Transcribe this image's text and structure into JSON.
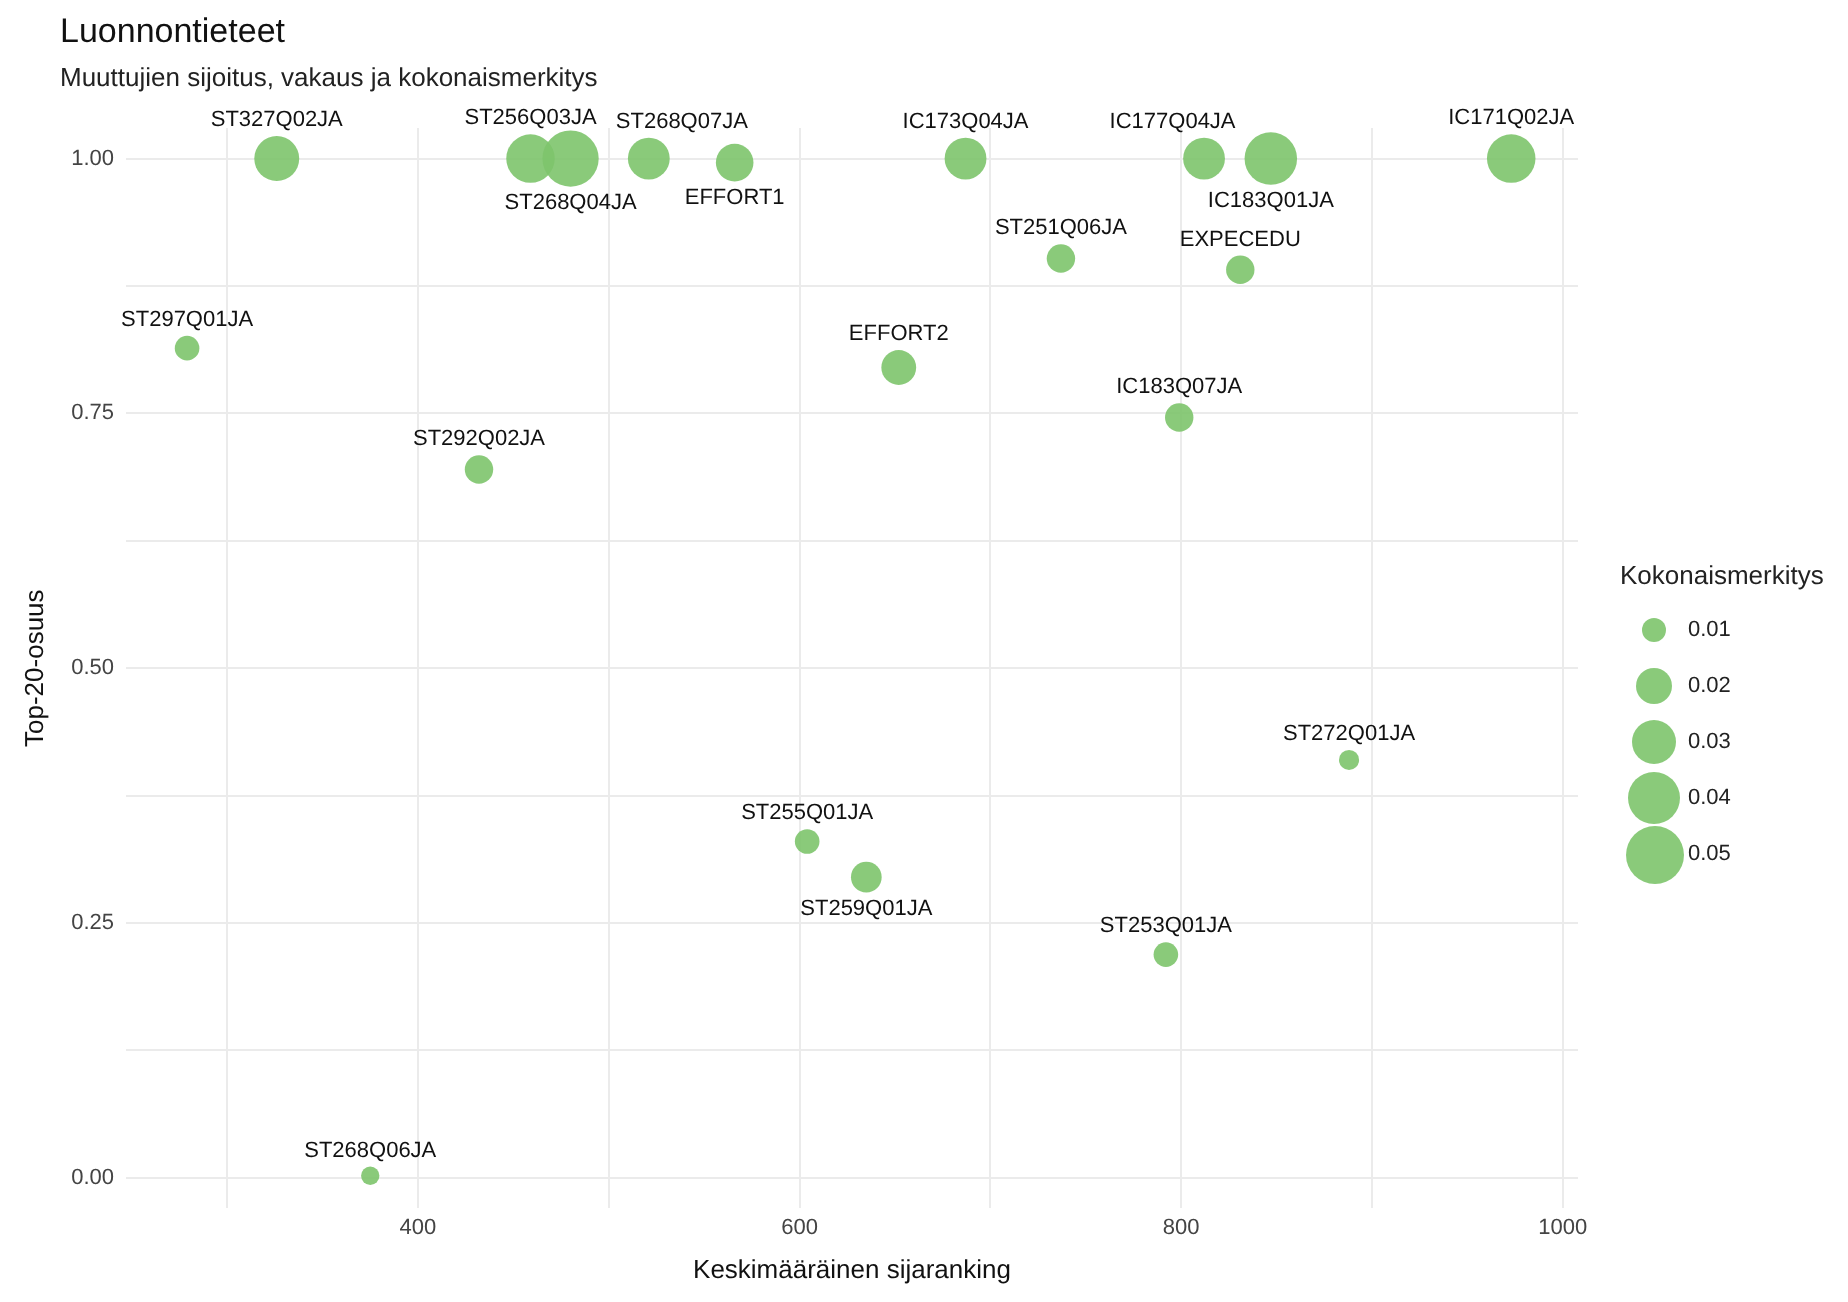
{
  "chart_data": {
    "type": "bubble",
    "title": "Luonnontieteet",
    "subtitle": "Muuttujien sijoitus, vakaus ja kokonaismerkitys",
    "xlabel": "Keskimääräinen sijaranking",
    "ylabel": "Top-20-osuus",
    "legend_title": "Kokonaismerkitys",
    "grid": true,
    "color": "#7dc46b",
    "x": [
      326,
      459,
      480,
      521,
      566,
      687,
      812,
      847,
      973,
      737,
      831,
      279,
      652,
      799,
      432,
      888,
      604,
      635,
      792,
      375
    ],
    "values": [
      1.0,
      1.0,
      1.0,
      1.0,
      0.996,
      1.0,
      1.0,
      1.0,
      1.0,
      0.902,
      0.891,
      0.814,
      0.795,
      0.746,
      0.695,
      0.41,
      0.33,
      0.295,
      0.219,
      0.002
    ],
    "sizes": [
      0.03,
      0.035,
      0.047,
      0.026,
      0.021,
      0.026,
      0.026,
      0.041,
      0.035,
      0.012,
      0.012,
      0.009,
      0.018,
      0.012,
      0.012,
      0.006,
      0.009,
      0.014,
      0.009,
      0.005
    ],
    "size_legend": [
      0.01,
      0.02,
      0.03,
      0.04,
      0.05
    ],
    "xlim": [
      247,
      1008
    ],
    "ylim": [
      -0.03,
      1.03
    ],
    "xticks": [
      {
        "value": 300,
        "label": null
      },
      400,
      {
        "value": 500,
        "label": null
      },
      600,
      {
        "value": 700,
        "label": null
      },
      800,
      {
        "value": 900,
        "label": null
      },
      1000
    ],
    "yticks": [
      {
        "value": 0,
        "label": "0.00"
      },
      {
        "value": 0.125,
        "label": null
      },
      {
        "value": 0.25,
        "label": "0.25"
      },
      {
        "value": 0.375,
        "label": null
      },
      {
        "value": 0.5,
        "label": "0.50"
      },
      {
        "value": 0.625,
        "label": null
      },
      {
        "value": 0.75,
        "label": "0.75"
      },
      {
        "value": 0.875,
        "label": null
      },
      {
        "value": 1,
        "label": "1.00"
      }
    ],
    "annotations": [
      {
        "text": "ST327Q02JA",
        "x": 326,
        "y": 1.0
      },
      {
        "text": "ST256Q03JA",
        "x": 459,
        "y": 1.0
      },
      {
        "text": "ST268Q04JA",
        "x": 480,
        "y": 1.0
      },
      {
        "text": "ST268Q07JA",
        "x": 521,
        "y": 1.0
      },
      {
        "text": "EFFORT1",
        "x": 566,
        "y": 0.996
      },
      {
        "text": "IC173Q04JA",
        "x": 687,
        "y": 1.0
      },
      {
        "text": "IC177Q04JA",
        "x": 812,
        "y": 1.0
      },
      {
        "text": "IC183Q01JA",
        "x": 847,
        "y": 1.0
      },
      {
        "text": "IC171Q02JA",
        "x": 973,
        "y": 1.0
      },
      {
        "text": "ST251Q06JA",
        "x": 737,
        "y": 0.902
      },
      {
        "text": "EXPECEDU",
        "x": 831,
        "y": 0.891
      },
      {
        "text": "ST297Q01JA",
        "x": 279,
        "y": 0.814
      },
      {
        "text": "EFFORT2",
        "x": 652,
        "y": 0.795
      },
      {
        "text": "IC183Q07JA",
        "x": 799,
        "y": 0.746
      },
      {
        "text": "ST292Q02JA",
        "x": 432,
        "y": 0.695
      },
      {
        "text": "ST272Q01JA",
        "x": 888,
        "y": 0.41
      },
      {
        "text": "ST255Q01JA",
        "x": 604,
        "y": 0.33
      },
      {
        "text": "ST259Q01JA",
        "x": 635,
        "y": 0.295
      },
      {
        "text": "ST253Q01JA",
        "x": 792,
        "y": 0.219
      },
      {
        "text": "ST268Q06JA",
        "x": 375,
        "y": 0.002
      }
    ]
  }
}
